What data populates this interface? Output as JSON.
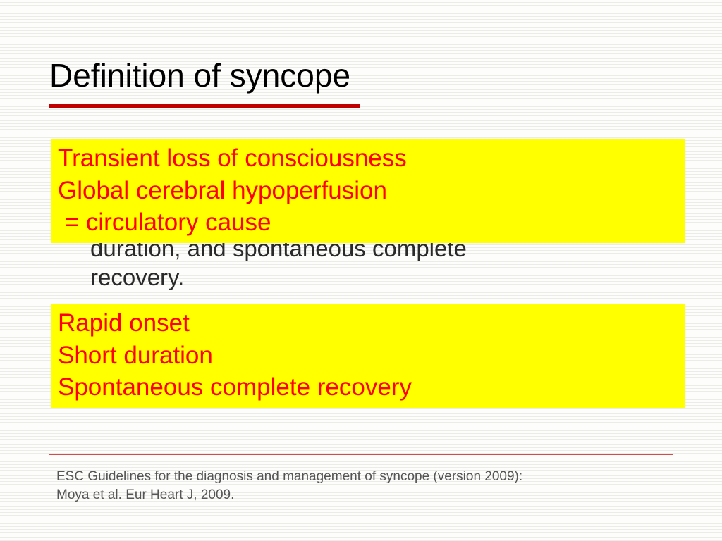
{
  "slide": {
    "title": "Definition of syncope",
    "rule_color": "#c00000",
    "body": {
      "line1": "duration, and spontaneous complete",
      "line2": "recovery."
    },
    "highlight1": {
      "line1": "Transient loss of consciousness",
      "line2": "Global cerebral hypoperfusion",
      "line3": " = circulatory cause",
      "bg": "#ffff00",
      "fg": "#ff0000"
    },
    "highlight2": {
      "line1": "Rapid onset",
      "line2": "Short duration",
      "line3": "Spontaneous complete recovery",
      "bg": "#ffff00",
      "fg": "#ff0000"
    },
    "footer": {
      "line1": "ESC Guidelines for the diagnosis and management of syncope (version 2009):",
      "line2": "Moya et al. Eur Heart J, 2009."
    },
    "background_color": "#fdfdfb",
    "line_color": "#ebebe8"
  }
}
